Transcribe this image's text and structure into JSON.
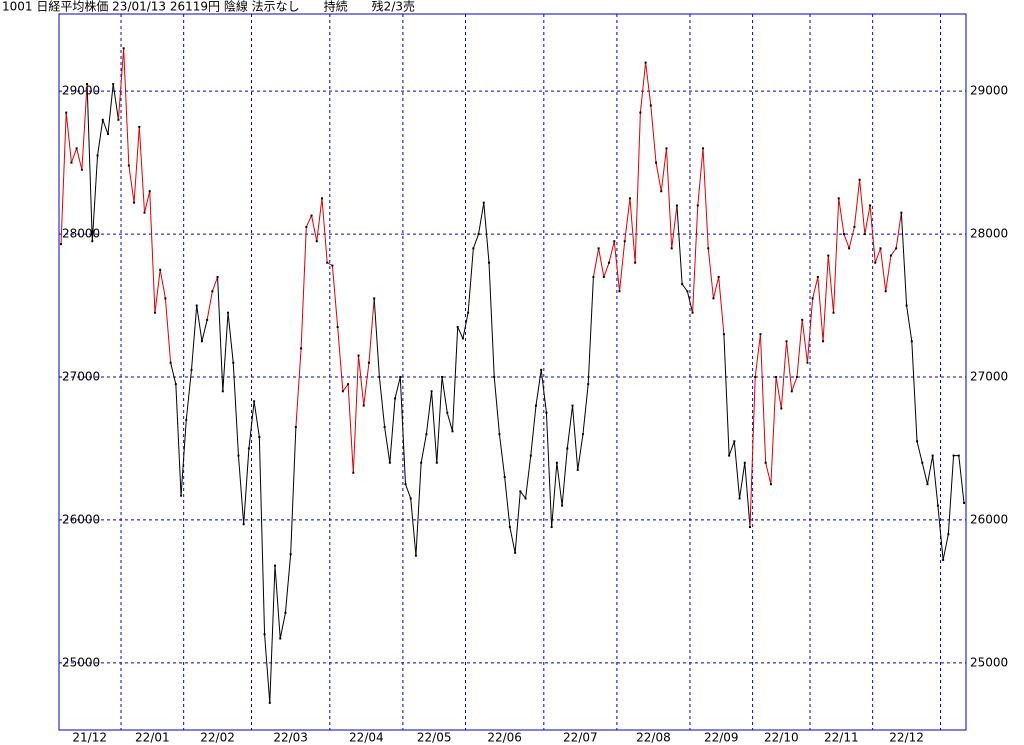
{
  "chart_data": {
    "type": "line",
    "title": "1001 日経平均株価 23/01/13 26119円 陰線 法示なし　　持続　　残2/3売",
    "ylim": [
      24530,
      29540
    ],
    "yticks": [
      25000,
      26000,
      27000,
      28000,
      29000
    ],
    "grid": true,
    "grid_color": "#0000cc",
    "months": [
      {
        "label": "21/12",
        "values": [
          27930,
          28850,
          28500,
          28600,
          28450,
          29050,
          27950,
          28550,
          28800,
          28700,
          29050,
          28800
        ],
        "colors": [
          "#000000",
          "#e00000",
          "#e00000",
          "#e00000",
          "#e00000",
          "#e00000",
          "#000000",
          "#000000",
          "#000000",
          "#000000",
          "#000000",
          "#000000"
        ]
      },
      {
        "label": "22/01",
        "values": [
          29300,
          28480,
          28220,
          28750,
          28150,
          28300,
          27450,
          27750,
          27550,
          27100,
          26950,
          26170
        ],
        "colors": [
          "#e00000",
          "#e00000",
          "#e00000",
          "#e00000",
          "#e00000",
          "#e00000",
          "#e00000",
          "#e00000",
          "#e00000",
          "#e00000",
          "#000000",
          "#000000"
        ]
      },
      {
        "label": "22/02",
        "values": [
          26700,
          27050,
          27500,
          27250,
          27400,
          27600,
          27700,
          26900,
          27450,
          27100,
          26450,
          25970,
          26500
        ],
        "colors": [
          "#000000",
          "#000000",
          "#000000",
          "#000000",
          "#000000",
          "#e00000",
          "#e00000",
          "#000000",
          "#000000",
          "#000000",
          "#000000",
          "#000000",
          "#000000"
        ]
      },
      {
        "label": "22/03",
        "values": [
          26830,
          26580,
          25200,
          24720,
          25680,
          25170,
          25350,
          25760,
          26650,
          27200,
          28050,
          28130,
          27950,
          28250,
          27800
        ],
        "colors": [
          "#000000",
          "#000000",
          "#000000",
          "#000000",
          "#000000",
          "#000000",
          "#000000",
          "#000000",
          "#000000",
          "#e00000",
          "#e00000",
          "#e00000",
          "#e00000",
          "#e00000",
          "#e00000"
        ]
      },
      {
        "label": "22/04",
        "values": [
          27780,
          27350,
          26900,
          26950,
          26330,
          27150,
          26800,
          27100,
          27550,
          27000,
          26650,
          26400,
          26850,
          27000
        ],
        "colors": [
          "#e00000",
          "#e00000",
          "#e00000",
          "#e00000",
          "#e00000",
          "#e00000",
          "#e00000",
          "#e00000",
          "#e00000",
          "#000000",
          "#000000",
          "#000000",
          "#000000",
          "#000000"
        ]
      },
      {
        "label": "22/05",
        "values": [
          26250,
          26150,
          25750,
          26400,
          26600,
          26900,
          26400,
          27000,
          26750,
          26620,
          27350,
          27270
        ],
        "colors": [
          "#000000",
          "#000000",
          "#000000",
          "#000000",
          "#000000",
          "#000000",
          "#000000",
          "#000000",
          "#000000",
          "#000000",
          "#000000",
          "#000000"
        ]
      },
      {
        "label": "22/06",
        "values": [
          27450,
          27900,
          28000,
          28220,
          27800,
          27000,
          26600,
          26300,
          25950,
          25770,
          26200,
          26150,
          26450,
          26800,
          27050
        ],
        "colors": [
          "#000000",
          "#000000",
          "#000000",
          "#000000",
          "#000000",
          "#000000",
          "#000000",
          "#000000",
          "#000000",
          "#000000",
          "#000000",
          "#000000",
          "#000000",
          "#000000",
          "#000000"
        ]
      },
      {
        "label": "22/07",
        "values": [
          26750,
          25950,
          26400,
          26100,
          26500,
          26800,
          26350,
          26600,
          26950,
          27700,
          27900,
          27700,
          27800,
          27950
        ],
        "colors": [
          "#000000",
          "#000000",
          "#000000",
          "#000000",
          "#000000",
          "#000000",
          "#000000",
          "#000000",
          "#000000",
          "#000000",
          "#e00000",
          "#e00000",
          "#e00000",
          "#e00000"
        ]
      },
      {
        "label": "22/08",
        "values": [
          27600,
          27950,
          28250,
          27800,
          28850,
          29200,
          28900,
          28500,
          28300,
          28600,
          27900,
          28200,
          27650,
          27600
        ],
        "colors": [
          "#e00000",
          "#e00000",
          "#e00000",
          "#e00000",
          "#e00000",
          "#e00000",
          "#e00000",
          "#e00000",
          "#e00000",
          "#e00000",
          "#e00000",
          "#e00000",
          "#000000",
          "#000000"
        ]
      },
      {
        "label": "22/09",
        "values": [
          27450,
          28200,
          28600,
          27900,
          27550,
          27700,
          27300,
          26450,
          26550,
          26150,
          26400,
          25950
        ],
        "colors": [
          "#000000",
          "#e00000",
          "#e00000",
          "#e00000",
          "#e00000",
          "#e00000",
          "#e00000",
          "#000000",
          "#000000",
          "#000000",
          "#000000",
          "#000000"
        ]
      },
      {
        "label": "22/10",
        "values": [
          27000,
          27300,
          26400,
          26250,
          27000,
          26780,
          27250,
          26900,
          27000,
          27400,
          27100
        ],
        "colors": [
          "#e00000",
          "#e00000",
          "#e00000",
          "#e00000",
          "#e00000",
          "#e00000",
          "#e00000",
          "#e00000",
          "#e00000",
          "#e00000",
          "#e00000"
        ]
      },
      {
        "label": "22/11",
        "values": [
          27550,
          27700,
          27250,
          27850,
          27450,
          28250,
          28000,
          27900,
          28050,
          28380,
          28000,
          28200
        ],
        "colors": [
          "#e00000",
          "#e00000",
          "#e00000",
          "#e00000",
          "#e00000",
          "#e00000",
          "#e00000",
          "#e00000",
          "#e00000",
          "#e00000",
          "#e00000",
          "#e00000"
        ]
      },
      {
        "label": "22/12",
        "values": [
          27800,
          27900,
          27600,
          27850,
          27900,
          28150,
          27500,
          27250,
          26550,
          26400,
          26250,
          26450,
          26100
        ],
        "colors": [
          "#e00000",
          "#e00000",
          "#e00000",
          "#e00000",
          "#e00000",
          "#e00000",
          "#000000",
          "#000000",
          "#000000",
          "#000000",
          "#000000",
          "#000000",
          "#000000"
        ]
      },
      {
        "label": null,
        "values": [
          25720,
          25900,
          26450,
          26450,
          26119
        ],
        "colors": [
          "#000000",
          "#000000",
          "#000000",
          "#000000",
          "#000000"
        ]
      }
    ]
  }
}
